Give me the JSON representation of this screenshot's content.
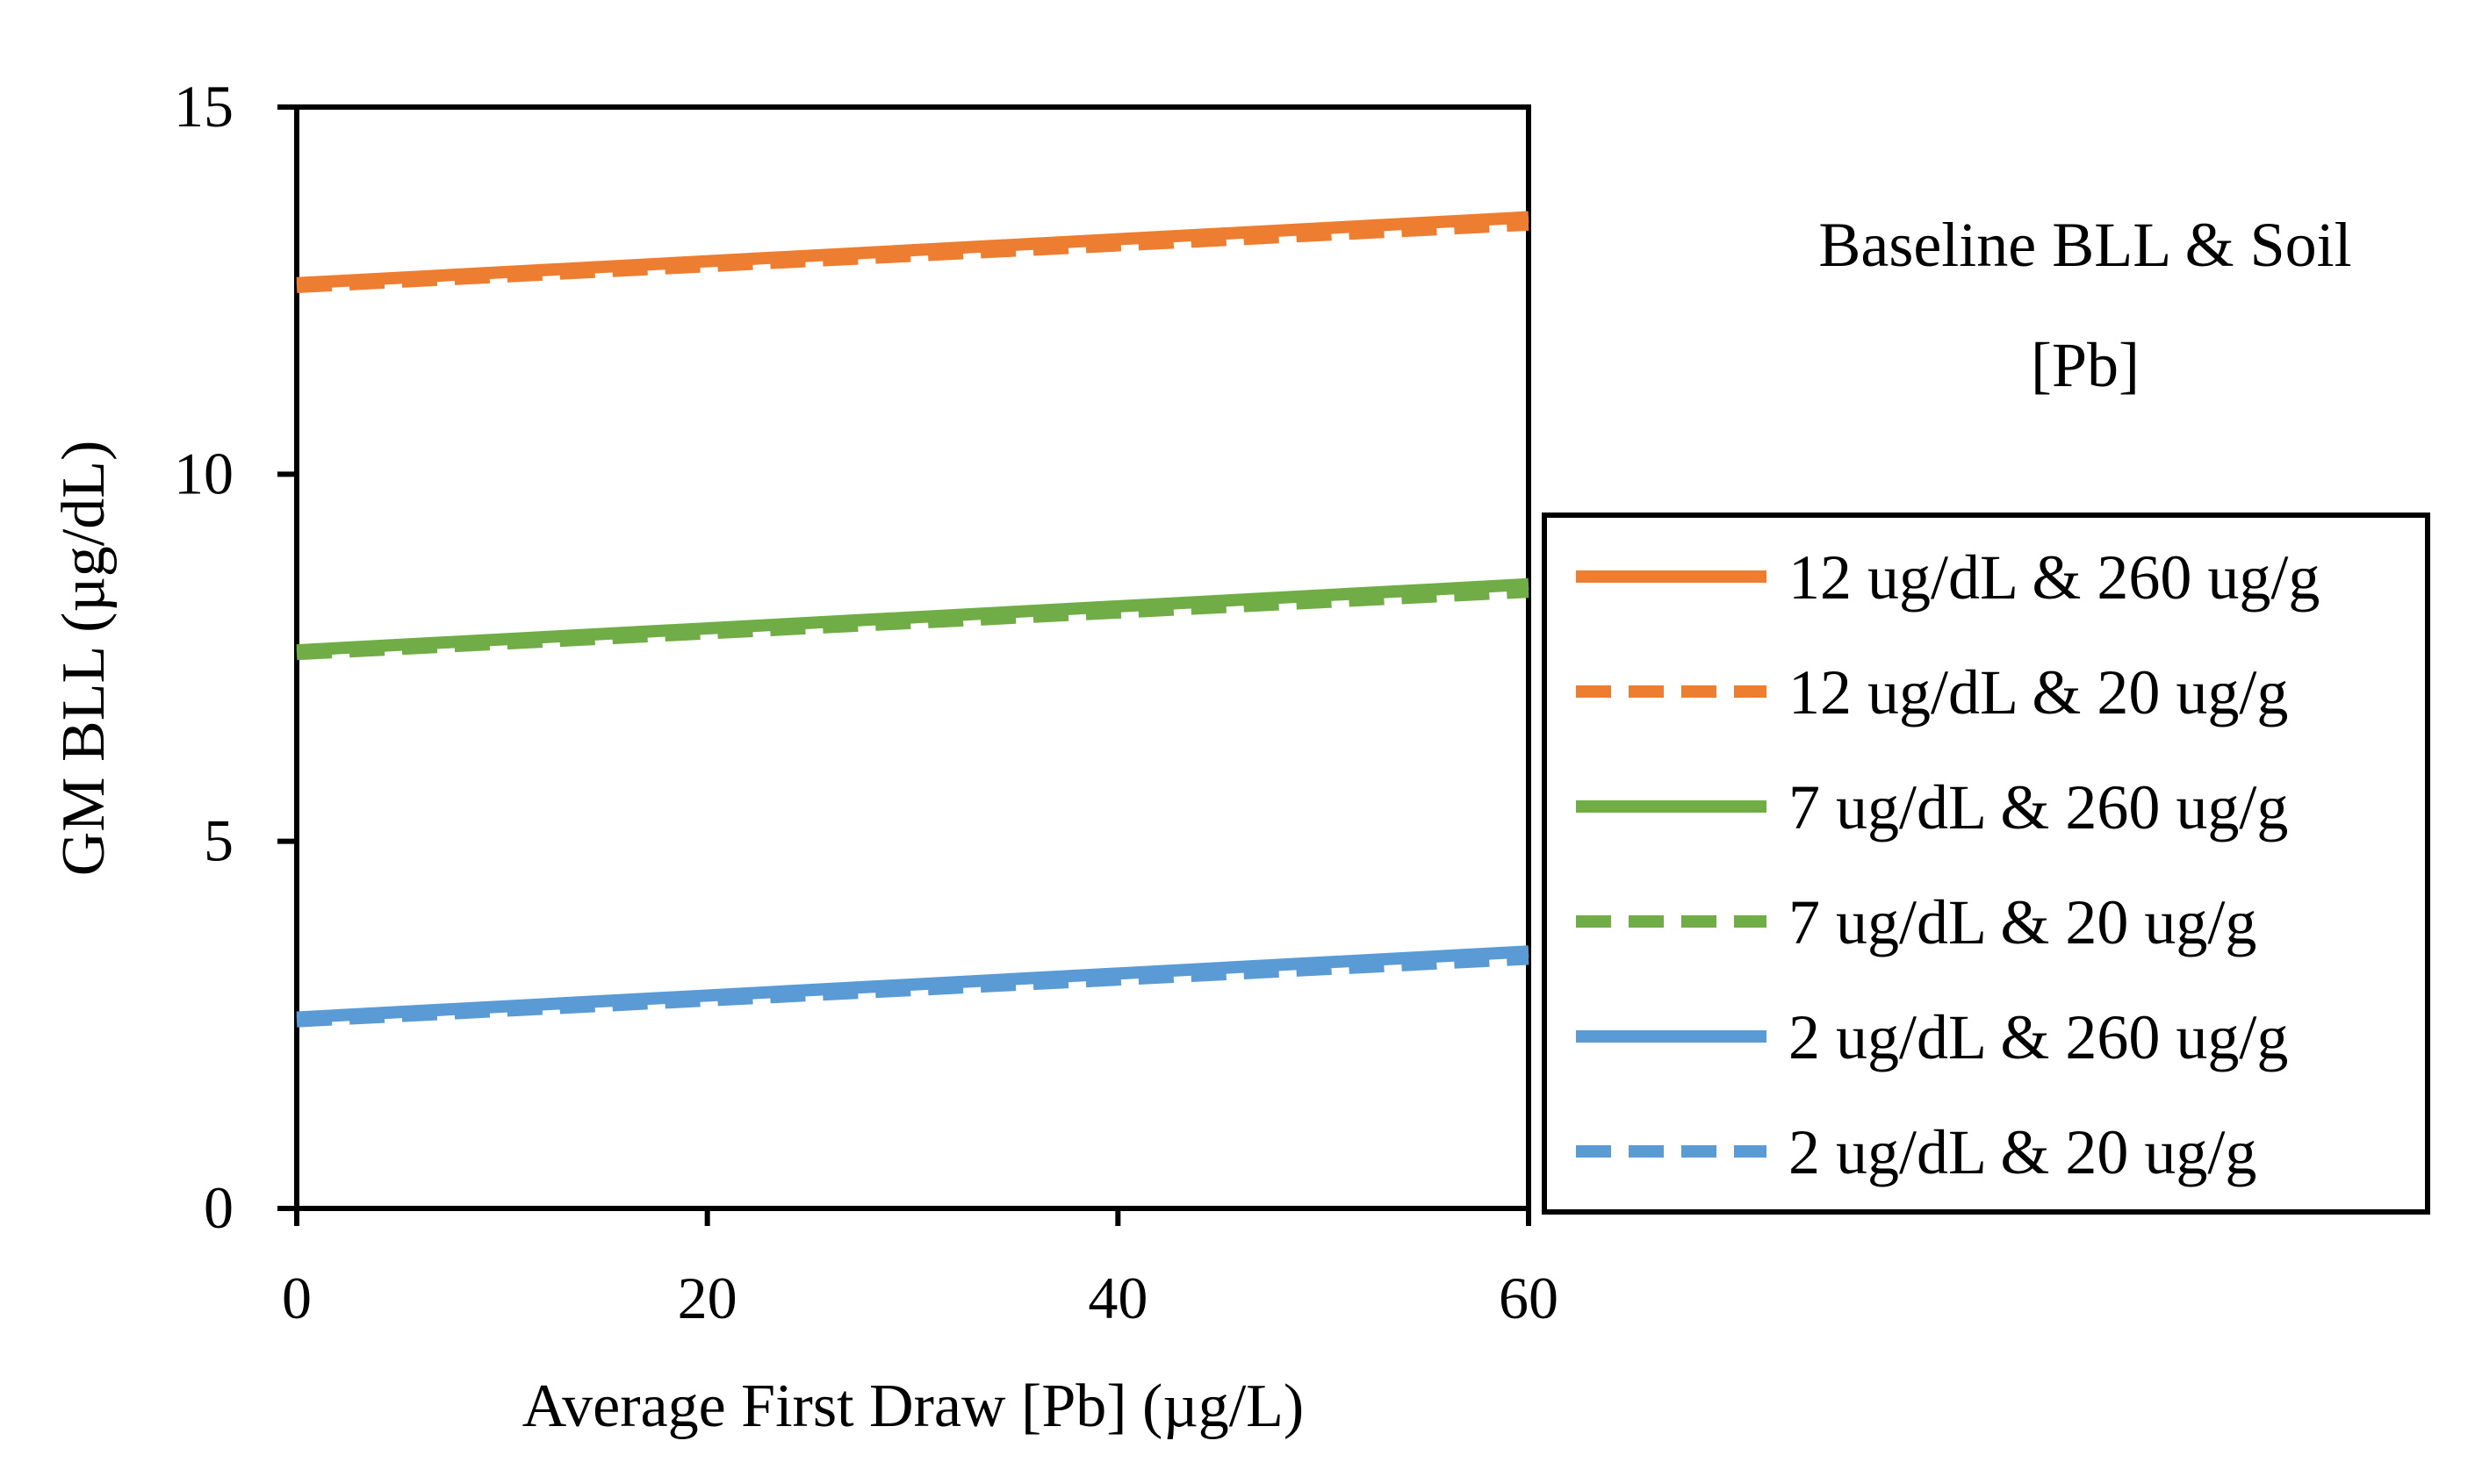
{
  "chart_data": {
    "type": "line",
    "title": "",
    "xlabel": "Average First Draw [Pb] (µg/L)",
    "ylabel": "GM BLL (µg/dL)",
    "xlim": [
      0,
      60
    ],
    "ylim": [
      0,
      15
    ],
    "x_ticks": [
      0,
      20,
      40,
      60
    ],
    "y_ticks": [
      0,
      5,
      10,
      15
    ],
    "x_tick_labels": [
      "0",
      "20",
      "40",
      "60"
    ],
    "y_tick_labels": [
      "0",
      "5",
      "10",
      "15"
    ],
    "grid": false,
    "legend": {
      "title_line1": "Baseline BLL & Soil",
      "title_line2": "[Pb]",
      "placement": "right"
    },
    "series": [
      {
        "name": "12 ug/dL & 260 ug/g",
        "color": "#ED7D31",
        "style": "solid",
        "x": [
          0,
          60
        ],
        "y": [
          12.6,
          13.5
        ]
      },
      {
        "name": "12 ug/dL & 20 ug/g",
        "color": "#ED7D31",
        "style": "dashed",
        "x": [
          0,
          60
        ],
        "y": [
          12.55,
          13.4
        ]
      },
      {
        "name": "7 ug/dL & 260 ug/g",
        "color": "#70AD47",
        "style": "solid",
        "x": [
          0,
          60
        ],
        "y": [
          7.6,
          8.5
        ]
      },
      {
        "name": "7 ug/dL & 20 ug/g",
        "color": "#70AD47",
        "style": "dashed",
        "x": [
          0,
          60
        ],
        "y": [
          7.55,
          8.4
        ]
      },
      {
        "name": "2 ug/dL & 260 ug/g",
        "color": "#5B9BD5",
        "style": "solid",
        "x": [
          0,
          60
        ],
        "y": [
          2.6,
          3.5
        ]
      },
      {
        "name": "2 ug/dL & 20 ug/g",
        "color": "#5B9BD5",
        "style": "dashed",
        "x": [
          0,
          60
        ],
        "y": [
          2.55,
          3.4
        ]
      }
    ]
  }
}
